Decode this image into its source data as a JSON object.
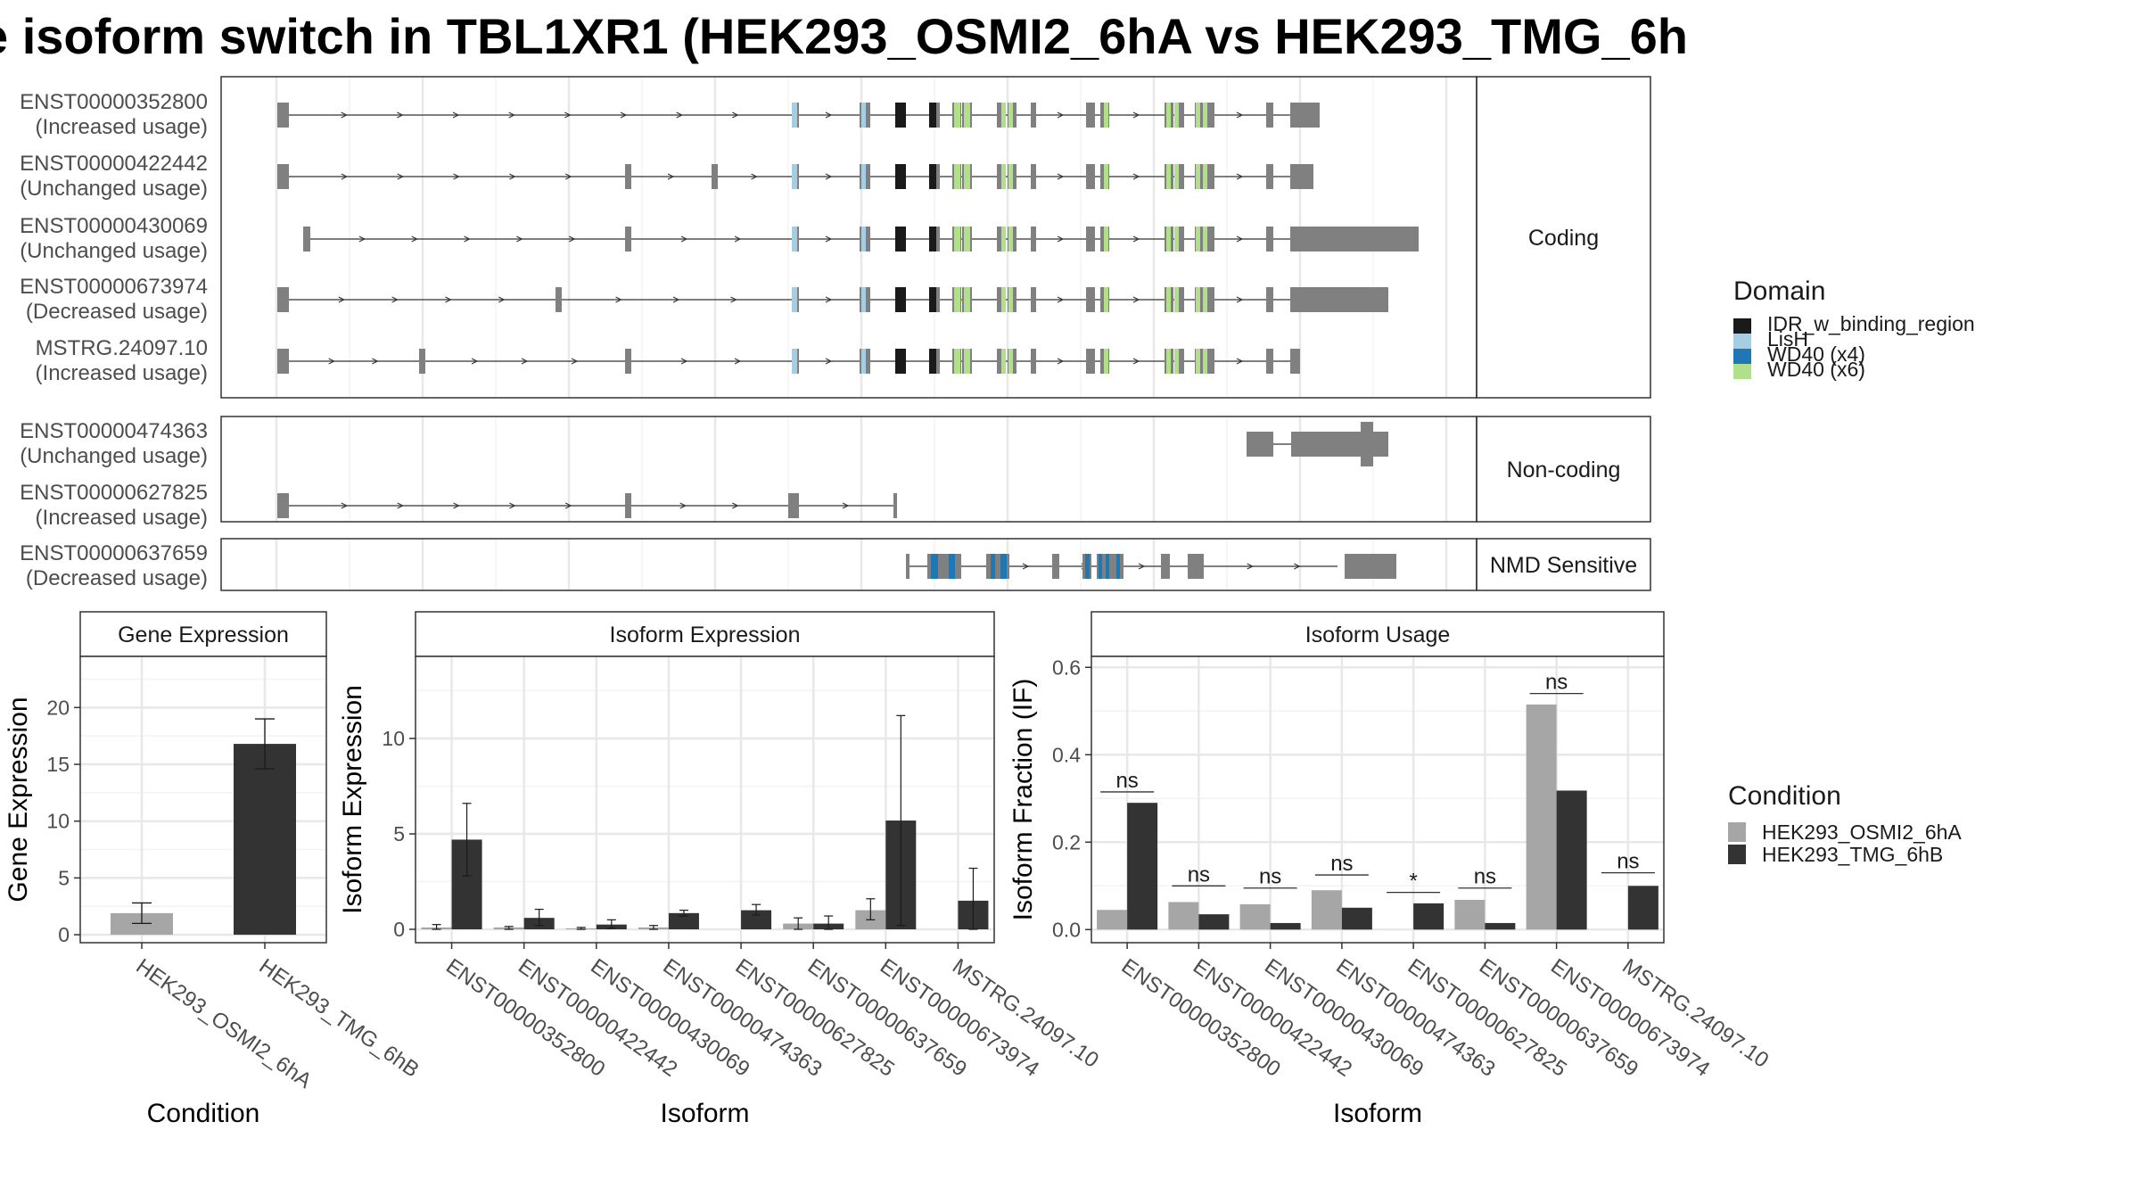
{
  "title": "e isoform switch in TBL1XR1 (HEK293_OSMI2_6hA vs HEK293_TMG_6h",
  "colors": {
    "exon": "#808080",
    "IDR_w_binding_region": "#1a1a1a",
    "LisH": "#a6cee3",
    "WD40_x4": "#1f78b4",
    "WD40_x6": "#b2df8a",
    "cond_a": "#a6a6a6",
    "cond_b": "#333333"
  },
  "chart_data": [
    {
      "type": "gene-structure",
      "panels": [
        {
          "label": "Coding",
          "transcripts": [
            {
              "id": "ENST00000352800",
              "usage": "(Increased usage)"
            },
            {
              "id": "ENST00000422442",
              "usage": "(Unchanged usage)"
            },
            {
              "id": "ENST00000430069",
              "usage": "(Unchanged usage)"
            },
            {
              "id": "ENST00000673974",
              "usage": "(Decreased usage)"
            },
            {
              "id": "MSTRG.24097.10",
              "usage": "(Increased usage)"
            }
          ]
        },
        {
          "label": "Non-coding",
          "transcripts": [
            {
              "id": "ENST00000474363",
              "usage": "(Unchanged usage)"
            },
            {
              "id": "ENST00000627825",
              "usage": "(Increased usage)"
            }
          ]
        },
        {
          "label": "NMD Sensitive",
          "transcripts": [
            {
              "id": "ENST00000637659",
              "usage": "(Decreased usage)"
            }
          ]
        }
      ],
      "legend": {
        "title": "Domain",
        "entries": [
          "IDR_w_binding_region",
          "LisH",
          "WD40 (x4)",
          "WD40 (x6)"
        ],
        "placement": "right"
      }
    },
    {
      "type": "bar",
      "title": "Gene Expression",
      "xlabel": "Condition",
      "ylabel": "Gene Expression",
      "ylim": [
        -0.7,
        24.5
      ],
      "yticks": [
        "0",
        "5",
        "10",
        "15",
        "20"
      ],
      "categories": [
        "HEK293_OSMI2_6hA",
        "HEK293_TMG_6hB"
      ],
      "values": [
        1.9,
        16.8
      ],
      "errors": [
        [
          1.0,
          2.8
        ],
        [
          14.6,
          19.0
        ]
      ],
      "grid": true
    },
    {
      "type": "bar",
      "title": "Isoform Expression",
      "xlabel": "Isoform",
      "ylabel": "Isoform Expression",
      "ylim": [
        -0.7,
        14.3
      ],
      "yticks": [
        "0",
        "5",
        "10"
      ],
      "categories": [
        "ENST00000352800",
        "ENST00000422442",
        "ENST00000430069",
        "ENST00000474363",
        "ENST00000627825",
        "ENST00000637659",
        "ENST00000673974",
        "MSTRG.24097.10"
      ],
      "series": [
        {
          "name": "HEK293_OSMI2_6hA",
          "values": [
            0.1,
            0.1,
            0.05,
            0.1,
            0.0,
            0.3,
            1.0,
            0.0
          ],
          "errors": [
            [
              0.0,
              0.25
            ],
            [
              0.0,
              0.15
            ],
            [
              0.0,
              0.1
            ],
            [
              0.0,
              0.2
            ],
            [
              0.0,
              0.0
            ],
            [
              0.0,
              0.6
            ],
            [
              0.5,
              1.6
            ],
            [
              0.0,
              0.0
            ]
          ]
        },
        {
          "name": "HEK293_TMG_6hB",
          "values": [
            4.7,
            0.6,
            0.25,
            0.85,
            1.0,
            0.3,
            5.7,
            1.5
          ],
          "errors": [
            [
              2.8,
              6.6
            ],
            [
              0.2,
              1.05
            ],
            [
              0.05,
              0.5
            ],
            [
              0.7,
              1.0
            ],
            [
              0.75,
              1.3
            ],
            [
              0.0,
              0.7
            ],
            [
              0.2,
              11.2
            ],
            [
              0.0,
              3.2
            ]
          ]
        }
      ],
      "grid": true
    },
    {
      "type": "bar",
      "title": "Isoform Usage",
      "xlabel": "Isoform",
      "ylabel": "Isoform Fraction (IF)",
      "ylim": [
        -0.03,
        0.625
      ],
      "yticks": [
        "0.0",
        "0.2",
        "0.4",
        "0.6"
      ],
      "categories": [
        "ENST00000352800",
        "ENST00000422442",
        "ENST00000430069",
        "ENST00000474363",
        "ENST00000627825",
        "ENST00000637659",
        "ENST00000673974",
        "MSTRG.24097.10"
      ],
      "series": [
        {
          "name": "HEK293_OSMI2_6hA",
          "values": [
            0.045,
            0.063,
            0.058,
            0.09,
            0.0,
            0.068,
            0.515,
            0.0
          ]
        },
        {
          "name": "HEK293_TMG_6hB",
          "values": [
            0.29,
            0.035,
            0.015,
            0.05,
            0.06,
            0.015,
            0.318,
            0.1
          ]
        }
      ],
      "significance": [
        "ns",
        "ns",
        "ns",
        "ns",
        "*",
        "ns",
        "ns",
        "ns"
      ],
      "sig_y": [
        0.315,
        0.1,
        0.095,
        0.125,
        0.085,
        0.095,
        0.54,
        0.13
      ],
      "grid": true
    }
  ],
  "condition_legend": {
    "title": "Condition",
    "entries": [
      "HEK293_OSMI2_6hA",
      "HEK293_TMG_6hB"
    ],
    "placement": "right"
  }
}
